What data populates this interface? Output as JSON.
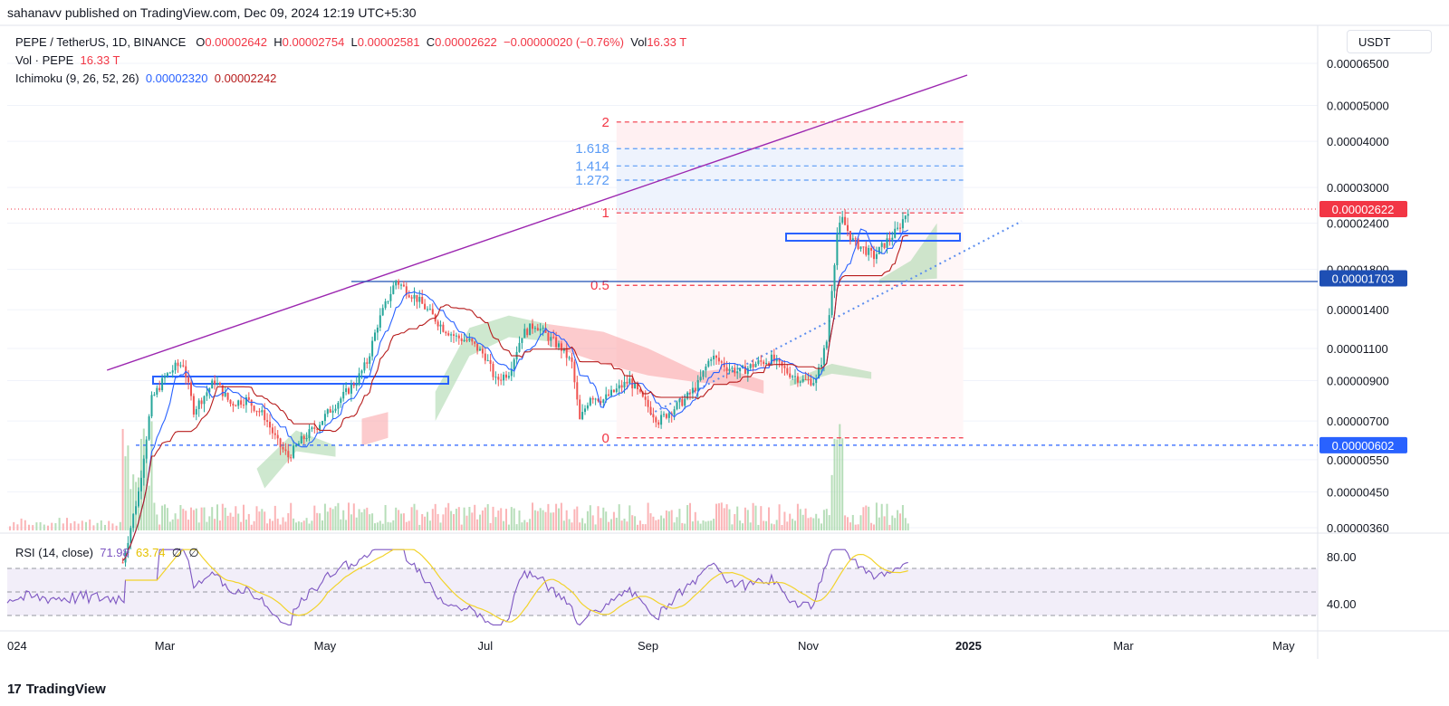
{
  "publisher_line": "sahanavv published on TradingView.com, Dec 09, 2024 12:19 UTC+5:30",
  "legend": {
    "symbol": "PEPE / TetherUS, 1D, BINANCE",
    "o_label": "O",
    "o_value": "0.00002642",
    "h_label": "H",
    "h_value": "0.00002754",
    "l_label": "L",
    "l_value": "0.00002581",
    "c_label": "C",
    "c_value": "0.00002622",
    "change": "−0.00000020 (−0.76%)",
    "vol_label": "Vol",
    "vol_value": "16.33 T",
    "vol_series_label": "Vol · PEPE",
    "vol_series_value": "16.33 T",
    "ichimoku_label": "Ichimoku (9, 26, 52, 26)",
    "ichimoku_v1": "0.00002320",
    "ichimoku_v2": "0.00002242",
    "rsi_label": "RSI (14, close)",
    "rsi_value": "71.98",
    "rsi_ma_value": "63.74",
    "rsi_extra1": "∅",
    "rsi_extra2": "∅"
  },
  "brand": {
    "name": "TradingView",
    "logo_text": "17"
  },
  "chart_data": {
    "type": "candlestick",
    "symbol": "PEPE / TetherUS",
    "timeframe": "1D",
    "exchange": "BINANCE",
    "currency_unit": "USDT",
    "y_scale": "log",
    "y_ticks": [
      "0.00006500",
      "0.00005000",
      "0.00004000",
      "0.00003000",
      "0.00002400",
      "0.00001800",
      "0.00001400",
      "0.00001100",
      "0.00000900",
      "0.00000700",
      "0.00000550",
      "0.00000450",
      "0.00000360"
    ],
    "price_label_current": "0.00002622",
    "price_label_level": "0.00001703",
    "price_label_low": "0.00000602",
    "x_ticks": [
      "024",
      "Mar",
      "May",
      "Jul",
      "Sep",
      "Nov",
      "2025",
      "Mar",
      "May"
    ],
    "x_tick_dates": [
      "2024-01-01",
      "2024-03-01",
      "2024-05-01",
      "2024-07-01",
      "2024-09-01",
      "2024-11-01",
      "2025-01-01",
      "2025-03-01",
      "2025-05-01"
    ],
    "fib_levels": [
      {
        "label": "2",
        "price": 4.51e-05,
        "color": "#f23645",
        "style": "dashed"
      },
      {
        "label": "1.618",
        "price": 3.82e-05,
        "color": "#5b9cf6",
        "style": "dashed"
      },
      {
        "label": "1.414",
        "price": 3.43e-05,
        "color": "#5b9cf6",
        "style": "dashed"
      },
      {
        "label": "1.272",
        "price": 3.14e-05,
        "color": "#5b9cf6",
        "style": "dashed"
      },
      {
        "label": "1",
        "price": 2.56e-05,
        "color": "#f23645",
        "style": "dashed"
      },
      {
        "label": "0.5",
        "price": 1.63e-05,
        "color": "#f23645",
        "style": "dashed"
      },
      {
        "label": "0",
        "price": 6.3e-06,
        "color": "#f23645",
        "style": "dashed"
      }
    ],
    "rsi_ticks": [
      "80.00",
      "40.00"
    ],
    "rsi_levels": [
      70,
      50,
      30
    ],
    "price_path": [
      [
        "2024-02-14",
        2.9e-06
      ],
      [
        "2024-02-20",
        4.5e-06
      ],
      [
        "2024-02-25",
        8e-06
      ],
      [
        "2024-03-01",
        9.2e-06
      ],
      [
        "2024-03-05",
        9.8e-06
      ],
      [
        "2024-03-08",
        1e-05
      ],
      [
        "2024-03-12",
        7.5e-06
      ],
      [
        "2024-03-16",
        8.2e-06
      ],
      [
        "2024-03-20",
        9e-06
      ],
      [
        "2024-03-26",
        7.8e-06
      ],
      [
        "2024-04-01",
        8e-06
      ],
      [
        "2024-04-08",
        7.2e-06
      ],
      [
        "2024-04-13",
        6.1e-06
      ],
      [
        "2024-04-17",
        5.6e-06
      ],
      [
        "2024-04-22",
        6.2e-06
      ],
      [
        "2024-04-28",
        6.8e-06
      ],
      [
        "2024-05-03",
        7.5e-06
      ],
      [
        "2024-05-08",
        8.2e-06
      ],
      [
        "2024-05-13",
        9e-06
      ],
      [
        "2024-05-17",
        1.01e-05
      ],
      [
        "2024-05-21",
        1.28e-05
      ],
      [
        "2024-05-25",
        1.5e-05
      ],
      [
        "2024-05-28",
        1.68e-05
      ],
      [
        "2024-06-01",
        1.58e-05
      ],
      [
        "2024-06-05",
        1.5e-05
      ],
      [
        "2024-06-10",
        1.37e-05
      ],
      [
        "2024-06-15",
        1.25e-05
      ],
      [
        "2024-06-20",
        1.18e-05
      ],
      [
        "2024-06-25",
        1.15e-05
      ],
      [
        "2024-07-01",
        1.05e-05
      ],
      [
        "2024-07-05",
        9e-06
      ],
      [
        "2024-07-10",
        9.5e-06
      ],
      [
        "2024-07-15",
        1.2e-05
      ],
      [
        "2024-07-20",
        1.28e-05
      ],
      [
        "2024-07-25",
        1.18e-05
      ],
      [
        "2024-07-30",
        1.1e-05
      ],
      [
        "2024-08-03",
        1e-05
      ],
      [
        "2024-08-06",
        7e-06
      ],
      [
        "2024-08-10",
        8.2e-06
      ],
      [
        "2024-08-15",
        8e-06
      ],
      [
        "2024-08-20",
        8.5e-06
      ],
      [
        "2024-08-25",
        9e-06
      ],
      [
        "2024-08-30",
        8e-06
      ],
      [
        "2024-09-05",
        7e-06
      ],
      [
        "2024-09-10",
        7.5e-06
      ],
      [
        "2024-09-15",
        8e-06
      ],
      [
        "2024-09-20",
        8.8e-06
      ],
      [
        "2024-09-25",
        1.05e-05
      ],
      [
        "2024-10-01",
        9.8e-06
      ],
      [
        "2024-10-06",
        9.5e-06
      ],
      [
        "2024-10-12",
        1e-05
      ],
      [
        "2024-10-18",
        1.03e-05
      ],
      [
        "2024-10-24",
        9.5e-06
      ],
      [
        "2024-10-30",
        9e-06
      ],
      [
        "2024-11-04",
        9e-06
      ],
      [
        "2024-11-08",
        1.15e-05
      ],
      [
        "2024-11-12",
        2.25e-05
      ],
      [
        "2024-11-14",
        2.45e-05
      ],
      [
        "2024-11-18",
        2.15e-05
      ],
      [
        "2024-11-22",
        2.05e-05
      ],
      [
        "2024-11-26",
        1.95e-05
      ],
      [
        "2024-12-01",
        2.15e-05
      ],
      [
        "2024-12-05",
        2.3e-05
      ],
      [
        "2024-12-09",
        2.62e-05
      ]
    ]
  }
}
